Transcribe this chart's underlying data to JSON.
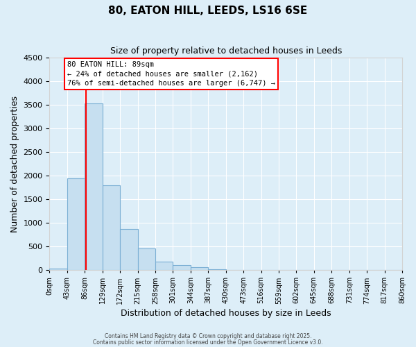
{
  "title": "80, EATON HILL, LEEDS, LS16 6SE",
  "subtitle": "Size of property relative to detached houses in Leeds",
  "xlabel": "Distribution of detached houses by size in Leeds",
  "ylabel": "Number of detached properties",
  "bin_edges": [
    0,
    43,
    86,
    129,
    172,
    215,
    258,
    301,
    344,
    387,
    430,
    473,
    516,
    559,
    602,
    645,
    688,
    731,
    774,
    817,
    860
  ],
  "bin_labels": [
    "0sqm",
    "43sqm",
    "86sqm",
    "129sqm",
    "172sqm",
    "215sqm",
    "258sqm",
    "301sqm",
    "344sqm",
    "387sqm",
    "430sqm",
    "473sqm",
    "516sqm",
    "559sqm",
    "602sqm",
    "645sqm",
    "688sqm",
    "731sqm",
    "774sqm",
    "817sqm",
    "860sqm"
  ],
  "bar_heights": [
    30,
    1950,
    3530,
    1800,
    870,
    460,
    175,
    100,
    55,
    20,
    0,
    0,
    0,
    0,
    0,
    0,
    0,
    0,
    0,
    0
  ],
  "bar_color": "#c6dff0",
  "bar_edge_color": "#7bafd4",
  "property_line_x": 89,
  "property_line_color": "red",
  "ylim": [
    0,
    4500
  ],
  "yticks": [
    0,
    500,
    1000,
    1500,
    2000,
    2500,
    3000,
    3500,
    4000,
    4500
  ],
  "annotation_title": "80 EATON HILL: 89sqm",
  "annotation_line1": "← 24% of detached houses are smaller (2,162)",
  "annotation_line2": "76% of semi-detached houses are larger (6,747) →",
  "annotation_box_facecolor": "white",
  "annotation_box_edgecolor": "red",
  "footer1": "Contains HM Land Registry data © Crown copyright and database right 2025.",
  "footer2": "Contains public sector information licensed under the Open Government Licence v3.0.",
  "background_color": "#ddeef8",
  "grid_color": "white"
}
